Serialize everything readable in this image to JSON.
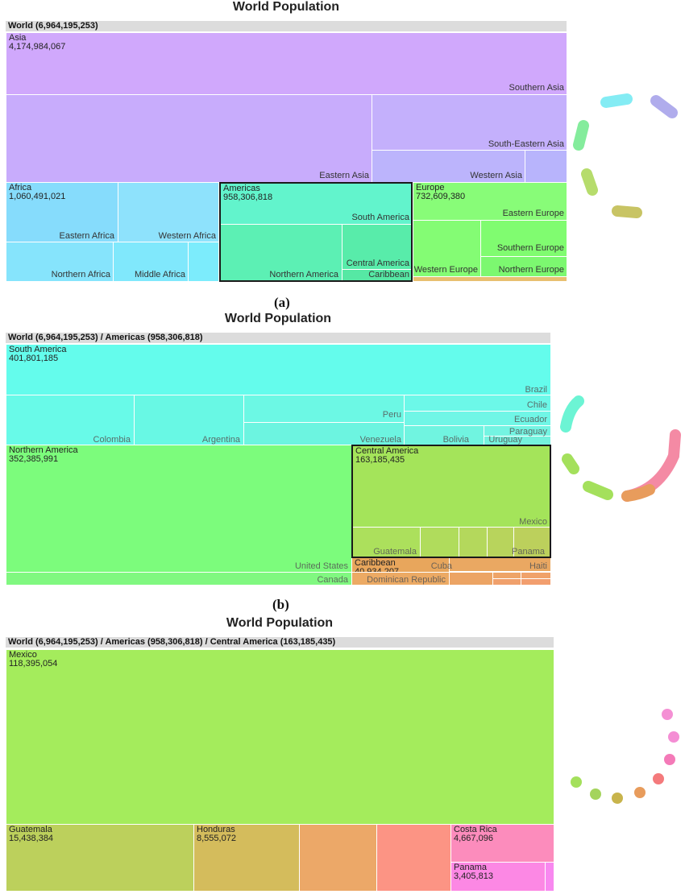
{
  "chart_data": [
    {
      "type": "treemap",
      "title": "World Population",
      "breadcrumb": "World (6,964,195,253)",
      "caption": "(a)",
      "items": [
        {
          "name": "Asia",
          "value": "4,174,984,067",
          "color": "#d0a8fc"
        },
        {
          "name": "Africa",
          "value": "1,060,491,021",
          "color": "#86dcfc"
        },
        {
          "name": "Americas",
          "value": "958,306,818",
          "color": "#62f4cc",
          "highlighted": true
        },
        {
          "name": "Europe",
          "value": "732,609,380",
          "color": "#88fc78"
        }
      ],
      "sub_labels": [
        "Southern Asia",
        "South-Eastern Asia",
        "Western Asia",
        "Eastern Asia",
        "Eastern Africa",
        "Western Africa",
        "Northern Africa",
        "Middle Africa",
        "South America",
        "Central America",
        "Northern America",
        "Caribbean",
        "Eastern Europe",
        "Southern Europe",
        "Western Europe",
        "Northern Europe"
      ]
    },
    {
      "type": "treemap",
      "title": "World Population",
      "breadcrumb": "World (6,964,195,253) / Americas (958,306,818)",
      "caption": "(b)",
      "items": [
        {
          "name": "South America",
          "value": "401,801,185",
          "color": "#64fcec"
        },
        {
          "name": "Northern America",
          "value": "352,385,991",
          "color": "#7cfc7c"
        },
        {
          "name": "Central America",
          "value": "163,185,435",
          "color": "#a4e45a",
          "highlighted": true
        },
        {
          "name": "Caribbean",
          "value": "40,934,207",
          "color": "#e8a65c"
        }
      ],
      "sub_labels": [
        "Brazil",
        "Chile",
        "Ecuador",
        "Paraguay",
        "Peru",
        "Colombia",
        "Argentina",
        "Venezuela",
        "Bolivia",
        "Uruguay",
        "Mexico",
        "Guatemala",
        "Panama",
        "United States",
        "Canada",
        "Cuba",
        "Haiti",
        "Dominican Republic"
      ]
    },
    {
      "type": "treemap",
      "title": "World Population",
      "breadcrumb": "World (6,964,195,253) / Americas (958,306,818) / Central America (163,185,435)",
      "caption": "",
      "items": [
        {
          "name": "Mexico",
          "value": "118,395,054",
          "color": "#a4ec5c"
        },
        {
          "name": "Guatemala",
          "value": "15,438,384",
          "color": "#bcd05c"
        },
        {
          "name": "Honduras",
          "value": "8,555,072",
          "color": "#d4bc5c"
        },
        {
          "name": "",
          "value": "",
          "color": "#eca868"
        },
        {
          "name": "",
          "value": "",
          "color": "#fc9484"
        },
        {
          "name": "Costa Rica",
          "value": "4,667,096",
          "color": "#fc8cbc"
        },
        {
          "name": "Panama",
          "value": "3,405,813",
          "color": "#fc88e4"
        }
      ]
    }
  ]
}
